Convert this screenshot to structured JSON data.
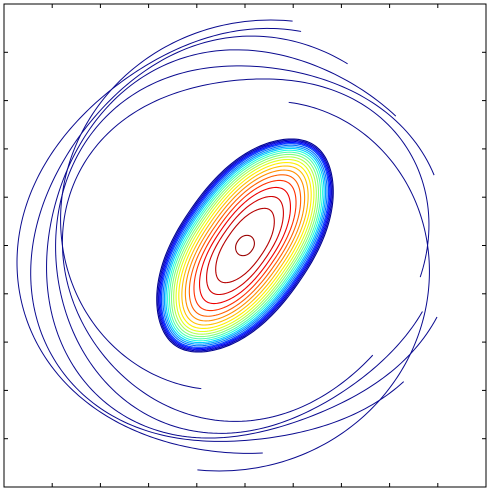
{
  "chart_data": {
    "type": "contour",
    "title": "",
    "xlabel": "",
    "ylabel": "",
    "xlim": [
      -1,
      1
    ],
    "ylim": [
      -1,
      1
    ],
    "grid": false,
    "tick_labels_shown": false,
    "n_ticks_per_axis": 11,
    "colormap": "jet",
    "background": "#ffffff",
    "axes_color": "#000000",
    "core": {
      "description_units": "data",
      "center": [
        0.0,
        0.0
      ],
      "rotation_deg": 55,
      "levels": [
        {
          "level": 0.04,
          "rx": 0.505,
          "ry": 0.27,
          "color": "#00008f"
        },
        {
          "level": 0.08,
          "rx": 0.5,
          "ry": 0.265,
          "color": "#0000b5"
        },
        {
          "level": 0.12,
          "rx": 0.495,
          "ry": 0.26,
          "color": "#0000df"
        },
        {
          "level": 0.16,
          "rx": 0.49,
          "ry": 0.255,
          "color": "#0010ff"
        },
        {
          "level": 0.2,
          "rx": 0.485,
          "ry": 0.25,
          "color": "#0040ff"
        },
        {
          "level": 0.24,
          "rx": 0.478,
          "ry": 0.244,
          "color": "#0070ff"
        },
        {
          "level": 0.28,
          "rx": 0.471,
          "ry": 0.238,
          "color": "#00a0ff"
        },
        {
          "level": 0.32,
          "rx": 0.464,
          "ry": 0.232,
          "color": "#00d0ff"
        },
        {
          "level": 0.36,
          "rx": 0.456,
          "ry": 0.225,
          "color": "#20ffdf"
        },
        {
          "level": 0.4,
          "rx": 0.447,
          "ry": 0.218,
          "color": "#50ffaf"
        },
        {
          "level": 0.44,
          "rx": 0.437,
          "ry": 0.21,
          "color": "#80ff80"
        },
        {
          "level": 0.48,
          "rx": 0.426,
          "ry": 0.202,
          "color": "#b0ff50"
        },
        {
          "level": 0.52,
          "rx": 0.414,
          "ry": 0.193,
          "color": "#dfff20"
        },
        {
          "level": 0.56,
          "rx": 0.4,
          "ry": 0.183,
          "color": "#ffef00"
        },
        {
          "level": 0.6,
          "rx": 0.384,
          "ry": 0.172,
          "color": "#ffbf00"
        },
        {
          "level": 0.65,
          "rx": 0.365,
          "ry": 0.16,
          "color": "#ff8f00"
        },
        {
          "level": 0.7,
          "rx": 0.343,
          "ry": 0.147,
          "color": "#ff6000"
        },
        {
          "level": 0.75,
          "rx": 0.316,
          "ry": 0.133,
          "color": "#ff3000"
        },
        {
          "level": 0.8,
          "rx": 0.282,
          "ry": 0.118,
          "color": "#ef0000"
        },
        {
          "level": 0.85,
          "rx": 0.238,
          "ry": 0.1,
          "color": "#d00000"
        },
        {
          "level": 0.9,
          "rx": 0.18,
          "ry": 0.078,
          "color": "#b50000"
        },
        {
          "level": 0.98,
          "rx": 0.045,
          "ry": 0.035,
          "color": "#9a0000"
        }
      ]
    },
    "outer_contours": {
      "color": "#0a0a8f",
      "rings": [
        {
          "r": 0.74,
          "start_deg": -10,
          "sweep_deg": 330,
          "wobble": 0.02
        },
        {
          "r": 0.79,
          "start_deg": 20,
          "sweep_deg": 320,
          "wobble": 0.025
        },
        {
          "r": 0.83,
          "start_deg": 40,
          "sweep_deg": 300,
          "wobble": 0.03
        },
        {
          "r": 0.87,
          "start_deg": 60,
          "sweep_deg": 260,
          "wobble": 0.03
        },
        {
          "r": 0.91,
          "start_deg": 75,
          "sweep_deg": 200,
          "wobble": 0.025
        }
      ],
      "arms": [
        {
          "r0": 0.95,
          "r1": 0.62,
          "start_deg": 78,
          "sweep_deg": 175
        },
        {
          "r0": 0.95,
          "r1": 0.62,
          "start_deg": 258,
          "sweep_deg": 175
        }
      ]
    }
  }
}
